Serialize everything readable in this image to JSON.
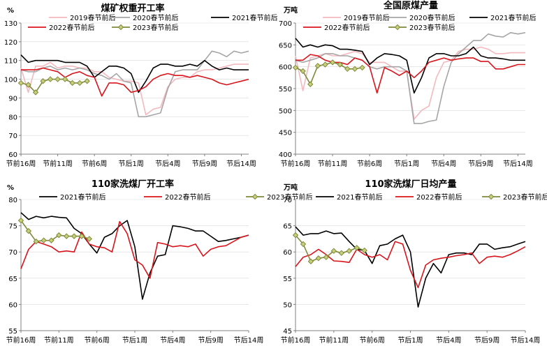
{
  "colors": {
    "s2019": "#f4b8bf",
    "s2020": "#a6a6a6",
    "s2021": "#000000",
    "s2022": "#d9141c",
    "s2023": "#7f8a3a",
    "axis": "#808080",
    "grid": "#d9d9d9"
  },
  "chart_data": [
    {
      "type": "line",
      "title": "煤矿权重开工率",
      "unit": "%",
      "ylim": [
        60,
        130
      ],
      "yticks": [
        60,
        70,
        80,
        90,
        100,
        110,
        120,
        130
      ],
      "xticks": [
        "节前16周",
        "节前11周",
        "节前6周",
        "节后1周",
        "节后4周",
        "节后9周",
        "节后14周"
      ],
      "xtick_index": [
        0,
        5,
        10,
        15,
        20,
        25,
        30
      ],
      "legend_rows": [
        [
          "2019春节前后",
          "2020春节前后",
          "2021春节前后"
        ],
        [
          "2022春节前后",
          "2023春节前后"
        ]
      ],
      "series": [
        {
          "name": "2019春节前后",
          "key": "s2019",
          "values": [
            106,
            93,
            107,
            107,
            109,
            106,
            107,
            107,
            106,
            106,
            104,
            104,
            101,
            100,
            99,
            99,
            98,
            81,
            84,
            85,
            96,
            100,
            101,
            101,
            104,
            105,
            105,
            106,
            107,
            108,
            108,
            108
          ]
        },
        {
          "name": "2020春节前后",
          "key": "s2020",
          "values": [
            105,
            104,
            104,
            106,
            107,
            105,
            106,
            105,
            106,
            105,
            103,
            102,
            100,
            103,
            99,
            98,
            80,
            80,
            81,
            82,
            95,
            104,
            105,
            105,
            105,
            110,
            115,
            114,
            112,
            115,
            114,
            115
          ]
        },
        {
          "name": "2021春节前后",
          "key": "s2021",
          "values": [
            113,
            109,
            110,
            110,
            110,
            110,
            109,
            109,
            109,
            107,
            101,
            104,
            107,
            107,
            106,
            103,
            93,
            99,
            106,
            108,
            108,
            107,
            107,
            108,
            107,
            110,
            107,
            105,
            106,
            105,
            105,
            105
          ]
        },
        {
          "name": "2022春节前后",
          "key": "s2022",
          "values": [
            105,
            105,
            105,
            106,
            105,
            104,
            101,
            103,
            104,
            102,
            101,
            91,
            98,
            98,
            97,
            93,
            94,
            96,
            100,
            102,
            103,
            102,
            102,
            101,
            102,
            101,
            100,
            98,
            97,
            98,
            99,
            100
          ]
        },
        {
          "name": "2023春节前后",
          "key": "s2023",
          "values": [
            98,
            97,
            93,
            99,
            100,
            100,
            100,
            98,
            98,
            99
          ]
        }
      ]
    },
    {
      "type": "line",
      "title": "全国原煤产量",
      "unit": "万吨",
      "ylim": [
        400,
        700
      ],
      "yticks": [
        400,
        450,
        500,
        550,
        600,
        650,
        700
      ],
      "xticks": [
        "节前16周",
        "节前11周",
        "节前6周",
        "节后1周",
        "节后4周",
        "节后9周",
        "节后14周"
      ],
      "xtick_index": [
        0,
        5,
        10,
        15,
        20,
        25,
        30
      ],
      "legend_rows": [
        [
          "2019春节前后",
          "2020春节前后",
          "2021春节前后"
        ],
        [
          "2022春节前后",
          "2023春节前后"
        ]
      ],
      "series": [
        {
          "name": "2019春节前后",
          "key": "s2019",
          "values": [
            625,
            545,
            620,
            625,
            630,
            625,
            625,
            630,
            635,
            630,
            610,
            610,
            610,
            600,
            590,
            590,
            480,
            500,
            510,
            575,
            610,
            615,
            635,
            640,
            640,
            645,
            640,
            630,
            630,
            632,
            632,
            632
          ]
        },
        {
          "name": "2020春节前后",
          "key": "s2020",
          "values": [
            615,
            610,
            615,
            620,
            630,
            630,
            625,
            625,
            620,
            615,
            600,
            595,
            600,
            600,
            600,
            590,
            470,
            470,
            475,
            478,
            555,
            610,
            630,
            645,
            660,
            660,
            675,
            670,
            668,
            678,
            675,
            678
          ]
        },
        {
          "name": "2021春节前后",
          "key": "s2021",
          "values": [
            665,
            645,
            650,
            645,
            650,
            648,
            640,
            640,
            638,
            635,
            605,
            620,
            630,
            628,
            625,
            615,
            540,
            575,
            620,
            630,
            630,
            625,
            625,
            630,
            645,
            625,
            620,
            620,
            618,
            615,
            615,
            615
          ]
        },
        {
          "name": "2022春节前后",
          "key": "s2022",
          "values": [
            615,
            615,
            628,
            625,
            615,
            610,
            610,
            605,
            620,
            615,
            600,
            540,
            598,
            590,
            580,
            590,
            575,
            590,
            610,
            615,
            620,
            615,
            618,
            620,
            620,
            612,
            612,
            595,
            595,
            600,
            605,
            605
          ]
        },
        {
          "name": "2023春节前后",
          "key": "s2023",
          "values": [
            598,
            590,
            560,
            602,
            605,
            610,
            605,
            595,
            595,
            598
          ]
        }
      ]
    },
    {
      "type": "line",
      "title": "110家洗煤厂开工率",
      "unit": "%",
      "ylim": [
        55,
        80
      ],
      "yticks": [
        55,
        60,
        65,
        70,
        75,
        80
      ],
      "xticks": [
        "节前16周",
        "节前11周",
        "节前6周",
        "节后1周",
        "节后4周",
        "节后9周",
        "节后14周"
      ],
      "xtick_index": [
        0,
        5,
        10,
        15,
        20,
        25,
        30
      ],
      "legend_rows": [
        [
          "2021春节前后",
          "2022春节前后",
          "2023春节前后"
        ]
      ],
      "series": [
        {
          "name": "2021春节前后",
          "key": "s2021",
          "values": [
            77.5,
            76.2,
            76.8,
            76.5,
            76.8,
            76.6,
            76.5,
            74.5,
            73.5,
            71.5,
            69.8,
            72.8,
            73.5,
            75.0,
            76.0,
            71.0,
            61.0,
            66.0,
            69.2,
            69.5,
            75.0,
            74.8,
            74.5,
            74.0,
            74.0,
            73.0,
            72.0,
            72.2,
            72.5,
            72.8,
            73.2
          ]
        },
        {
          "name": "2022春节前后",
          "key": "s2022",
          "values": [
            66.8,
            70.5,
            72.0,
            71.5,
            71.0,
            70.0,
            70.2,
            70.0,
            73.8,
            71.5,
            71.0,
            70.8,
            70.0,
            75.8,
            73.5,
            68.5,
            67.5,
            65.0,
            71.8,
            71.5,
            71.0,
            71.2,
            71.0,
            71.5,
            69.2,
            70.5,
            71.0,
            71.2,
            72.0,
            72.8,
            73.2
          ]
        },
        {
          "name": "2023春节前后",
          "key": "s2023",
          "values": [
            76.0,
            74.0,
            72.0,
            72.2,
            72.2,
            73.2,
            73.0,
            73.0,
            73.0,
            72.5
          ]
        }
      ]
    },
    {
      "type": "line",
      "title": "110家洗煤厂日均产量",
      "unit": "万吨",
      "ylim": [
        45,
        70
      ],
      "yticks": [
        45,
        50,
        55,
        60,
        65,
        70
      ],
      "xticks": [
        "节前16周",
        "节前11周",
        "节前6周",
        "节后1周",
        "节后4周",
        "节后9周",
        "节后14周"
      ],
      "xtick_index": [
        0,
        5,
        10,
        15,
        20,
        25,
        30
      ],
      "legend_rows": [
        [
          "2021春节前后",
          "2022春节前后",
          "2023春节前后"
        ]
      ],
      "series": [
        {
          "name": "2021春节前后",
          "key": "s2021",
          "values": [
            64.8,
            63.2,
            63.5,
            63.5,
            64.0,
            63.5,
            63.6,
            62.0,
            60.5,
            60.3,
            57.8,
            61.2,
            61.5,
            62.5,
            63.2,
            60.0,
            49.5,
            55.0,
            57.8,
            56.0,
            59.5,
            59.8,
            59.8,
            59.5,
            61.5,
            61.5,
            60.5,
            60.8,
            61.0,
            61.5,
            62.0
          ]
        },
        {
          "name": "2022春节前后",
          "key": "s2022",
          "values": [
            57.2,
            59.0,
            59.5,
            60.5,
            59.5,
            58.3,
            58.2,
            58.0,
            60.5,
            59.5,
            59.0,
            59.5,
            58.5,
            62.0,
            61.5,
            56.5,
            53.2,
            57.5,
            58.5,
            58.8,
            59.0,
            59.3,
            59.5,
            59.8,
            57.8,
            59.0,
            59.2,
            59.0,
            59.5,
            60.2,
            61.0
          ]
        },
        {
          "name": "2023春节前后",
          "key": "s2023",
          "values": [
            63.2,
            61.5,
            58.2,
            58.8,
            59.0,
            60.2,
            59.8,
            60.2,
            60.8,
            60.3
          ]
        }
      ]
    }
  ]
}
